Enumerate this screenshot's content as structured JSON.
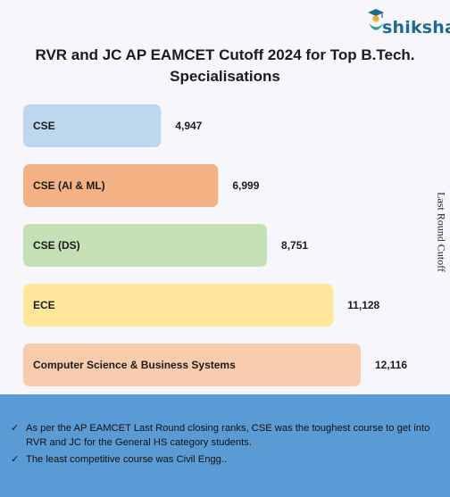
{
  "brand": {
    "name": "shiksha"
  },
  "chart_data": {
    "type": "bar",
    "orientation": "horizontal",
    "title": "RVR and JC AP EAMCET Cutoff 2024 for Top B.Tech. Specialisations",
    "ylabel": "Last Round Cutoff",
    "grid": false,
    "categories": [
      "CSE",
      "CSE (AI & ML)",
      "CSE (DS)",
      "ECE",
      "Computer Science & Business Systems"
    ],
    "values": [
      4947,
      6999,
      8751,
      11128,
      12116
    ],
    "value_labels": [
      "4,947",
      "6,999",
      "8,751",
      "11,128",
      "12,116"
    ],
    "colors": [
      "#bdd7ee",
      "#f4b183",
      "#c5e0b4",
      "#ffe699",
      "#f8cbad"
    ]
  },
  "notes": [
    "As per the AP EAMCET Last Round closing ranks, CSE was the toughest course to get into RVR and JC for the General HS category students.",
    "The least competitive course was Civil Engg.."
  ],
  "icons": {
    "logo": "graduate-figure-icon",
    "bullet": "check-mark-icon"
  }
}
